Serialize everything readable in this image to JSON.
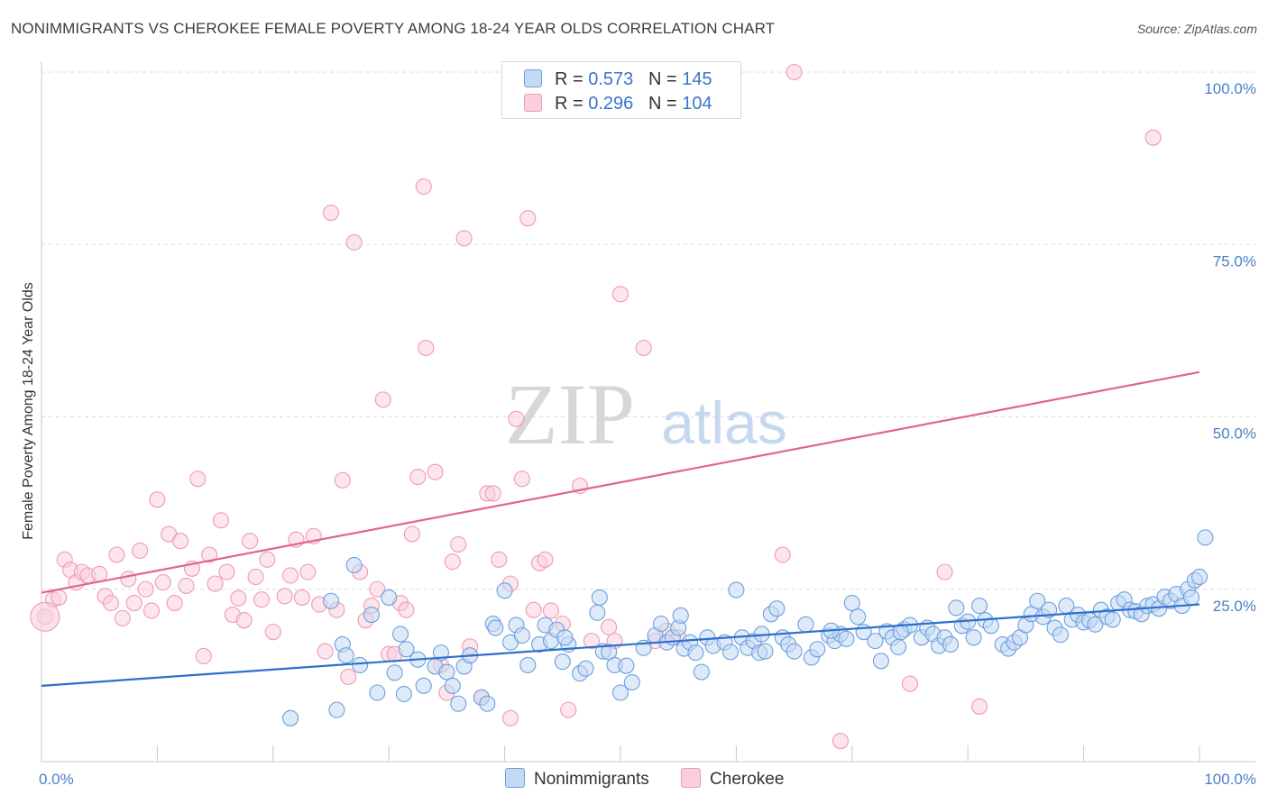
{
  "header": {
    "title": "NONIMMIGRANTS VS CHEROKEE FEMALE POVERTY AMONG 18-24 YEAR OLDS CORRELATION CHART",
    "source": "Source: ZipAtlas.com"
  },
  "watermark": {
    "zip": "ZIP",
    "atlas": "atlas"
  },
  "legend": {
    "rows": [
      {
        "r_label": "R =",
        "r_value": "0.573",
        "n_label": "N =",
        "n_value": "145"
      },
      {
        "r_label": "R =",
        "r_value": "0.296",
        "n_label": "N =",
        "n_value": "104"
      }
    ],
    "bottom": [
      "Nonimmigrants",
      "Cherokee"
    ]
  },
  "chart_data": {
    "type": "scatter",
    "title": "NONIMMIGRANTS VS CHEROKEE FEMALE POVERTY AMONG 18-24 YEAR OLDS CORRELATION CHART",
    "xlabel": "",
    "ylabel": "Female Poverty Among 18-24 Year Olds",
    "xlim": [
      0,
      100
    ],
    "ylim": [
      0,
      100
    ],
    "x_tick_labels": [
      "0.0%",
      "100.0%"
    ],
    "y_tick_labels": [
      "25.0%",
      "50.0%",
      "75.0%",
      "100.0%"
    ],
    "y_ticks": [
      25,
      50,
      75,
      100
    ],
    "grid": "horizontal dashed",
    "colors": {
      "nonimmigrants": "#6b9fdf",
      "nonimmigrants_line": "#2e6fcc",
      "cherokee": "#f09ab5",
      "cherokee_line": "#e0658f",
      "tick_text": "#4a7fc8"
    },
    "series": [
      {
        "name": "Nonimmigrants",
        "r": 0.573,
        "n": 145,
        "trend": {
          "x": [
            0,
            100
          ],
          "y": [
            11.0,
            22.8
          ]
        },
        "points": [
          [
            21.5,
            6.3
          ],
          [
            25,
            23.3
          ],
          [
            25.5,
            7.5
          ],
          [
            26,
            17.0
          ],
          [
            26.3,
            15.4
          ],
          [
            27,
            28.5
          ],
          [
            27.5,
            14.0
          ],
          [
            28.5,
            21.3
          ],
          [
            29,
            10.0
          ],
          [
            30,
            23.8
          ],
          [
            30.5,
            12.9
          ],
          [
            31,
            18.5
          ],
          [
            31.3,
            9.8
          ],
          [
            31.5,
            16.3
          ],
          [
            32.5,
            14.8
          ],
          [
            33,
            11.0
          ],
          [
            34,
            13.8
          ],
          [
            34.5,
            15.8
          ],
          [
            35,
            13.0
          ],
          [
            35.5,
            11.0
          ],
          [
            36,
            8.4
          ],
          [
            36.5,
            13.8
          ],
          [
            37,
            15.4
          ],
          [
            38,
            9.3
          ],
          [
            38.5,
            8.4
          ],
          [
            39,
            20.0
          ],
          [
            39.2,
            19.4
          ],
          [
            40,
            24.8
          ],
          [
            40.5,
            17.3
          ],
          [
            41,
            19.8
          ],
          [
            41.5,
            18.3
          ],
          [
            42,
            14.0
          ],
          [
            43,
            17.0
          ],
          [
            43.5,
            19.8
          ],
          [
            44,
            17.5
          ],
          [
            44.5,
            19.1
          ],
          [
            45,
            14.5
          ],
          [
            45.5,
            17.0
          ],
          [
            46.5,
            12.8
          ],
          [
            47,
            13.5
          ],
          [
            48,
            21.6
          ],
          [
            48.2,
            23.8
          ],
          [
            48.5,
            16.0
          ],
          [
            49,
            15.9
          ],
          [
            49.5,
            14.0
          ],
          [
            50,
            10.0
          ],
          [
            50.5,
            13.9
          ],
          [
            51,
            11.5
          ],
          [
            52,
            16.5
          ],
          [
            53,
            18.3
          ],
          [
            53.5,
            20.0
          ],
          [
            54,
            17.3
          ],
          [
            54.5,
            18.0
          ],
          [
            55,
            19.4
          ],
          [
            55.5,
            16.4
          ],
          [
            56,
            17.3
          ],
          [
            56.5,
            15.8
          ],
          [
            57,
            13.0
          ],
          [
            57.5,
            18.0
          ],
          [
            58,
            16.8
          ],
          [
            59,
            17.3
          ],
          [
            59.5,
            15.9
          ],
          [
            60,
            24.9
          ],
          [
            60.5,
            18.0
          ],
          [
            61,
            16.5
          ],
          [
            61.5,
            17.5
          ],
          [
            62,
            15.8
          ],
          [
            62.5,
            16.0
          ],
          [
            63,
            21.4
          ],
          [
            63.5,
            22.2
          ],
          [
            64,
            18.0
          ],
          [
            64.5,
            17.0
          ],
          [
            65,
            16.0
          ],
          [
            66,
            19.9
          ],
          [
            66.5,
            15.1
          ],
          [
            67,
            16.3
          ],
          [
            68,
            18.3
          ],
          [
            68.5,
            17.5
          ],
          [
            69,
            18.5
          ],
          [
            69.5,
            17.8
          ],
          [
            70,
            23.0
          ],
          [
            70.5,
            21.0
          ],
          [
            71,
            18.8
          ],
          [
            72,
            17.5
          ],
          [
            72.5,
            14.6
          ],
          [
            73,
            18.9
          ],
          [
            73.5,
            18.0
          ],
          [
            74,
            16.6
          ],
          [
            74.5,
            19.2
          ],
          [
            75,
            19.8
          ],
          [
            76,
            18.0
          ],
          [
            76.5,
            19.4
          ],
          [
            77,
            18.5
          ],
          [
            77.5,
            16.8
          ],
          [
            78,
            18.0
          ],
          [
            78.5,
            17.0
          ],
          [
            79,
            22.3
          ],
          [
            79.5,
            19.7
          ],
          [
            80,
            20.3
          ],
          [
            80.5,
            18.0
          ],
          [
            81,
            22.6
          ],
          [
            81.5,
            20.5
          ],
          [
            82,
            19.7
          ],
          [
            83,
            17.0
          ],
          [
            83.5,
            16.4
          ],
          [
            84,
            17.3
          ],
          [
            84.5,
            18.0
          ],
          [
            85,
            19.8
          ],
          [
            85.5,
            21.4
          ],
          [
            86,
            23.3
          ],
          [
            86.5,
            21.0
          ],
          [
            87,
            22.0
          ],
          [
            87.5,
            19.4
          ],
          [
            88,
            18.4
          ],
          [
            88.5,
            22.6
          ],
          [
            89,
            20.6
          ],
          [
            89.5,
            21.3
          ],
          [
            90,
            20.2
          ],
          [
            90.5,
            20.5
          ],
          [
            91,
            19.9
          ],
          [
            91.5,
            22.0
          ],
          [
            92,
            21.0
          ],
          [
            92.5,
            20.6
          ],
          [
            93,
            23.0
          ],
          [
            93.5,
            23.5
          ],
          [
            94,
            22.0
          ],
          [
            94.5,
            21.8
          ],
          [
            95,
            21.4
          ],
          [
            95.5,
            22.6
          ],
          [
            96,
            22.8
          ],
          [
            96.5,
            22.2
          ],
          [
            97,
            23.9
          ],
          [
            97.5,
            23.3
          ],
          [
            98,
            24.3
          ],
          [
            98.5,
            22.6
          ],
          [
            99,
            25.0
          ],
          [
            99.3,
            23.8
          ],
          [
            99.6,
            26.3
          ],
          [
            100,
            26.8
          ],
          [
            100.5,
            32.5
          ],
          [
            45.2,
            18.0
          ],
          [
            55.2,
            21.2
          ],
          [
            62.2,
            18.5
          ],
          [
            68.2,
            19.0
          ],
          [
            74.2,
            18.8
          ]
        ]
      },
      {
        "name": "Cherokee",
        "r": 0.296,
        "n": 104,
        "trend": {
          "x": [
            0,
            100
          ],
          "y": [
            24.5,
            56.5
          ]
        },
        "points": [
          [
            0.3,
            21.0
          ],
          [
            1,
            23.5
          ],
          [
            1.5,
            23.8
          ],
          [
            2,
            29.3
          ],
          [
            2.5,
            27.8
          ],
          [
            3,
            26.0
          ],
          [
            3.5,
            27.5
          ],
          [
            4,
            27.0
          ],
          [
            5,
            27.2
          ],
          [
            5.5,
            24.0
          ],
          [
            6,
            23.0
          ],
          [
            6.5,
            30.0
          ],
          [
            7,
            20.8
          ],
          [
            7.5,
            26.5
          ],
          [
            8,
            23.0
          ],
          [
            8.5,
            30.6
          ],
          [
            9,
            25.0
          ],
          [
            9.5,
            21.9
          ],
          [
            10,
            38.0
          ],
          [
            10.5,
            26.0
          ],
          [
            11,
            33.0
          ],
          [
            11.5,
            23.0
          ],
          [
            12,
            32.0
          ],
          [
            12.5,
            25.5
          ],
          [
            13,
            28.0
          ],
          [
            13.5,
            41.0
          ],
          [
            14,
            15.3
          ],
          [
            14.5,
            30.0
          ],
          [
            15,
            25.8
          ],
          [
            15.5,
            35.0
          ],
          [
            16,
            27.5
          ],
          [
            16.5,
            21.3
          ],
          [
            17,
            23.7
          ],
          [
            17.5,
            20.5
          ],
          [
            18,
            32.0
          ],
          [
            18.5,
            26.8
          ],
          [
            19,
            23.5
          ],
          [
            19.5,
            29.3
          ],
          [
            20,
            18.8
          ],
          [
            21,
            24.0
          ],
          [
            21.5,
            27.0
          ],
          [
            22,
            32.2
          ],
          [
            22.5,
            23.8
          ],
          [
            23,
            27.5
          ],
          [
            23.5,
            32.7
          ],
          [
            24,
            22.8
          ],
          [
            24.5,
            16.0
          ],
          [
            25,
            79.6
          ],
          [
            25.5,
            22.0
          ],
          [
            26,
            40.8
          ],
          [
            26.5,
            12.3
          ],
          [
            27,
            75.3
          ],
          [
            27.5,
            27.5
          ],
          [
            28,
            20.5
          ],
          [
            28.5,
            22.6
          ],
          [
            29,
            25.0
          ],
          [
            29.5,
            52.5
          ],
          [
            30,
            15.6
          ],
          [
            30.5,
            15.6
          ],
          [
            31,
            23.0
          ],
          [
            31.5,
            22.0
          ],
          [
            32,
            33.0
          ],
          [
            32.5,
            41.3
          ],
          [
            33,
            83.4
          ],
          [
            33.2,
            60.0
          ],
          [
            34,
            42.0
          ],
          [
            34.5,
            14.0
          ],
          [
            35,
            10.0
          ],
          [
            35.5,
            29.0
          ],
          [
            36,
            31.5
          ],
          [
            36.5,
            75.9
          ],
          [
            37,
            16.7
          ],
          [
            38,
            9.3
          ],
          [
            38.5,
            38.9
          ],
          [
            39,
            38.9
          ],
          [
            39.5,
            29.3
          ],
          [
            40.5,
            25.8
          ],
          [
            41,
            49.7
          ],
          [
            41.5,
            41.0
          ],
          [
            42,
            78.8
          ],
          [
            42.5,
            22.0
          ],
          [
            43,
            28.8
          ],
          [
            43.5,
            29.3
          ],
          [
            44,
            21.9
          ],
          [
            45,
            20.0
          ],
          [
            45.5,
            7.5
          ],
          [
            46.5,
            40.0
          ],
          [
            48,
            100.0
          ],
          [
            49,
            19.5
          ],
          [
            50,
            67.8
          ],
          [
            52,
            60.0
          ],
          [
            53,
            17.5
          ],
          [
            54,
            19.0
          ],
          [
            55,
            18.0
          ],
          [
            64,
            30.0
          ],
          [
            65,
            100.0
          ],
          [
            69,
            3.0
          ],
          [
            75,
            11.3
          ],
          [
            78,
            27.5
          ],
          [
            81,
            8.0
          ],
          [
            96,
            90.5
          ],
          [
            40.5,
            6.3
          ],
          [
            47.5,
            17.5
          ],
          [
            49.5,
            17.5
          ]
        ]
      }
    ]
  }
}
